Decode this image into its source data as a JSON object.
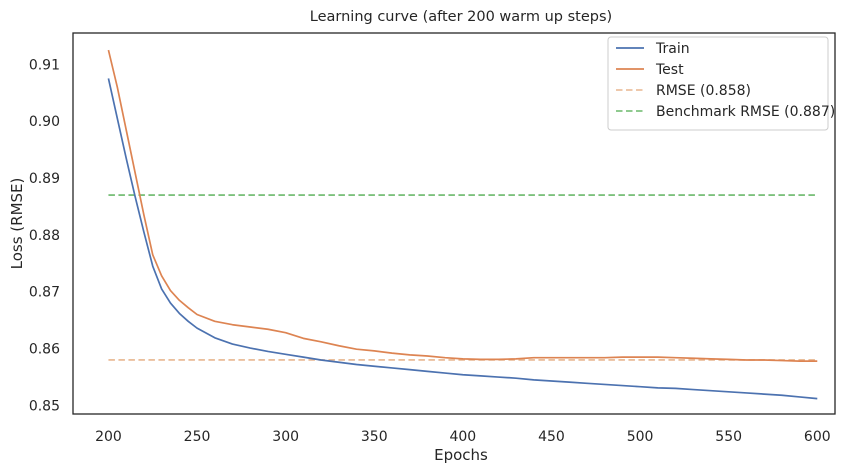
{
  "chart_data": {
    "type": "line",
    "title": "Learning curve (after 200 warm up steps)",
    "xlabel": "Epochs",
    "ylabel": "Loss (RMSE)",
    "xlim": [
      180,
      610
    ],
    "ylim": [
      0.8485,
      0.9155
    ],
    "xticks": [
      200,
      250,
      300,
      350,
      400,
      450,
      500,
      550,
      600
    ],
    "yticks": [
      0.85,
      0.86,
      0.87,
      0.88,
      0.89,
      0.9,
      0.91
    ],
    "ytick_labels": [
      "0.85",
      "0.86",
      "0.87",
      "0.88",
      "0.89",
      "0.90",
      "0.91"
    ],
    "grid": false,
    "legend_position": "top-right",
    "series": [
      {
        "name": "Train",
        "style": "solid",
        "color": "#4c72b0",
        "x": [
          200,
          205,
          210,
          215,
          220,
          225,
          230,
          235,
          240,
          245,
          250,
          260,
          270,
          280,
          290,
          300,
          310,
          320,
          330,
          340,
          350,
          360,
          370,
          380,
          390,
          400,
          410,
          420,
          430,
          440,
          450,
          460,
          470,
          480,
          490,
          500,
          510,
          520,
          530,
          540,
          550,
          560,
          570,
          580,
          590,
          600
        ],
        "values": [
          0.9075,
          0.9005,
          0.8935,
          0.8868,
          0.8805,
          0.8745,
          0.8705,
          0.868,
          0.8662,
          0.8648,
          0.8636,
          0.8619,
          0.8608,
          0.8601,
          0.8595,
          0.859,
          0.8585,
          0.858,
          0.8576,
          0.8572,
          0.8569,
          0.8566,
          0.8563,
          0.856,
          0.8557,
          0.8554,
          0.8552,
          0.855,
          0.8548,
          0.8545,
          0.8543,
          0.8541,
          0.8539,
          0.8537,
          0.8535,
          0.8533,
          0.8531,
          0.853,
          0.8528,
          0.8526,
          0.8524,
          0.8522,
          0.852,
          0.8518,
          0.8515,
          0.8512
        ]
      },
      {
        "name": "Test",
        "style": "solid",
        "color": "#dd8452",
        "x": [
          200,
          205,
          210,
          215,
          220,
          225,
          230,
          235,
          240,
          245,
          250,
          260,
          270,
          280,
          290,
          300,
          310,
          320,
          330,
          340,
          350,
          360,
          370,
          380,
          390,
          400,
          410,
          420,
          430,
          440,
          450,
          460,
          470,
          480,
          490,
          500,
          510,
          520,
          530,
          540,
          550,
          560,
          570,
          580,
          590,
          600
        ],
        "values": [
          0.9125,
          0.906,
          0.8985,
          0.891,
          0.8835,
          0.8765,
          0.8728,
          0.8702,
          0.8685,
          0.8672,
          0.866,
          0.8648,
          0.8642,
          0.8638,
          0.8634,
          0.8628,
          0.8618,
          0.8612,
          0.8605,
          0.8599,
          0.8596,
          0.8592,
          0.8589,
          0.8587,
          0.8584,
          0.8582,
          0.8581,
          0.8581,
          0.8582,
          0.8584,
          0.8584,
          0.8584,
          0.8584,
          0.8584,
          0.8585,
          0.8585,
          0.8585,
          0.8584,
          0.8583,
          0.8582,
          0.8581,
          0.858,
          0.858,
          0.8579,
          0.8578,
          0.8578
        ]
      },
      {
        "name": "RMSE (0.858)",
        "style": "dashed",
        "color": "#e8b68f",
        "x": [
          200,
          600
        ],
        "values": [
          0.858,
          0.858
        ]
      },
      {
        "name": "Benchmark RMSE (0.887)",
        "style": "dashed",
        "color": "#6ab86a",
        "x": [
          200,
          600
        ],
        "values": [
          0.887,
          0.887
        ]
      }
    ]
  }
}
